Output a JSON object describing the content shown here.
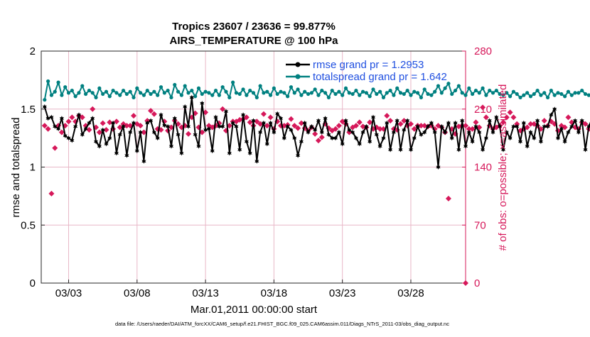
{
  "chart_data": {
    "type": "line",
    "title": "Tropics 23607 / 23636 = 99.877%",
    "subtitle": "AIRS_TEMPERATURE @ 100 hPa",
    "xlabel": "Mar.01,2011 00:00:00 start",
    "ylabel_left": "rmse and totalspread",
    "ylabel_right": "# of obs: o=possible; ×=assimilated",
    "footer": "data file: /Users/raeder/DAI/ATM_forcXX/CAM6_setup/f.e21.FHIST_BGC.f09_025.CAM6assim.011/Diags_NTrS_2011-03/obs_diag_output.nc",
    "x_ticks": [
      "03/03",
      "03/08",
      "03/13",
      "03/18",
      "03/23",
      "03/28"
    ],
    "x_tick_values": [
      3,
      8,
      13,
      18,
      23,
      28
    ],
    "xlim": [
      1.0,
      32.0
    ],
    "ylim_left": [
      0,
      2
    ],
    "y_ticks_left": [
      "0",
      "0.5",
      "1",
      "1.5",
      "2"
    ],
    "ylim_right": [
      0,
      280
    ],
    "y_ticks_right": [
      "0",
      "70",
      "140",
      "210",
      "280"
    ],
    "grid": true,
    "legend_position": "top-right",
    "colors": {
      "rmse": "#000000",
      "totalspread": "#008080",
      "obs": "#d6185a",
      "legend_text": "#1f4fe0"
    },
    "series": [
      {
        "name": "rmse grand pr = 1.2953",
        "color": "#000000",
        "marker": "star",
        "x_start": 1.25,
        "x_step": 0.25,
        "values": [
          1.52,
          1.42,
          1.43,
          1.35,
          1.33,
          1.42,
          1.27,
          1.25,
          1.23,
          1.35,
          1.45,
          1.28,
          1.33,
          1.38,
          1.42,
          1.22,
          1.18,
          1.32,
          1.2,
          1.25,
          1.38,
          1.12,
          1.28,
          1.35,
          1.1,
          1.3,
          1.38,
          1.14,
          1.3,
          1.05,
          1.38,
          1.4,
          1.3,
          1.25,
          1.45,
          1.36,
          1.35,
          1.18,
          1.42,
          1.28,
          1.12,
          1.52,
          1.35,
          1.6,
          1.28,
          1.18,
          1.55,
          1.32,
          1.33,
          1.14,
          1.43,
          1.35,
          1.35,
          1.48,
          1.12,
          1.38,
          1.35,
          1.15,
          1.45,
          1.22,
          1.12,
          1.4,
          1.05,
          1.3,
          1.38,
          1.2,
          1.38,
          1.3,
          1.46,
          1.42,
          1.25,
          1.35,
          1.32,
          1.25,
          1.1,
          1.22,
          1.38,
          1.3,
          1.35,
          1.32,
          1.4,
          1.3,
          1.42,
          1.28,
          1.25,
          1.25,
          1.3,
          1.2,
          1.4,
          1.32,
          1.3,
          1.25,
          1.2,
          1.3,
          1.35,
          1.22,
          1.43,
          1.28,
          1.18,
          1.25,
          1.38,
          1.15,
          1.3,
          1.4,
          1.15,
          1.32,
          1.4,
          1.15,
          1.25,
          1.35,
          1.28,
          1.3,
          1.35,
          1.38,
          1.3,
          1.0,
          1.35,
          1.3,
          1.38,
          1.25,
          1.38,
          1.15,
          1.4,
          1.18,
          1.3,
          1.22,
          1.35,
          1.3,
          1.15,
          1.25,
          1.4,
          1.3,
          1.43,
          1.35,
          1.15,
          1.3,
          1.25,
          1.35,
          1.35,
          1.22,
          1.38,
          1.18,
          1.3,
          1.25,
          1.4,
          1.22,
          1.35,
          1.35,
          1.45,
          1.5,
          1.25,
          1.33,
          1.22,
          1.3,
          1.35,
          1.4,
          1.3,
          1.4,
          1.15,
          1.35,
          1.42,
          1.2,
          1.45,
          1.48,
          1.35,
          1.4,
          1.45,
          1.47,
          1.2
        ]
      },
      {
        "name": "totalspread grand pr = 1.642",
        "color": "#008080",
        "marker": "circle",
        "x_start": 1.25,
        "x_step": 0.25,
        "values": [
          1.58,
          1.74,
          1.62,
          1.65,
          1.73,
          1.62,
          1.69,
          1.64,
          1.66,
          1.61,
          1.64,
          1.7,
          1.63,
          1.66,
          1.64,
          1.6,
          1.68,
          1.63,
          1.65,
          1.61,
          1.66,
          1.64,
          1.62,
          1.66,
          1.63,
          1.65,
          1.6,
          1.68,
          1.64,
          1.62,
          1.66,
          1.63,
          1.65,
          1.62,
          1.69,
          1.64,
          1.66,
          1.6,
          1.71,
          1.65,
          1.62,
          1.7,
          1.64,
          1.66,
          1.61,
          1.68,
          1.63,
          1.65,
          1.64,
          1.62,
          1.66,
          1.62,
          1.69,
          1.65,
          1.6,
          1.73,
          1.64,
          1.63,
          1.67,
          1.62,
          1.66,
          1.64,
          1.6,
          1.7,
          1.64,
          1.65,
          1.62,
          1.68,
          1.63,
          1.65,
          1.64,
          1.61,
          1.69,
          1.64,
          1.67,
          1.62,
          1.65,
          1.63,
          1.64,
          1.67,
          1.62,
          1.66,
          1.64,
          1.6,
          1.66,
          1.63,
          1.65,
          1.62,
          1.68,
          1.64,
          1.63,
          1.66,
          1.62,
          1.65,
          1.64,
          1.61,
          1.67,
          1.63,
          1.65,
          1.6,
          1.64,
          1.66,
          1.62,
          1.68,
          1.64,
          1.63,
          1.66,
          1.62,
          1.65,
          1.64,
          1.6,
          1.67,
          1.63,
          1.62,
          1.65,
          1.7,
          1.64,
          1.68,
          1.72,
          1.63,
          1.66,
          1.7,
          1.64,
          1.62,
          1.68,
          1.63,
          1.66,
          1.64,
          1.68,
          1.62,
          1.66,
          1.64,
          1.66,
          1.63,
          1.62,
          1.64,
          1.61,
          1.65,
          1.63,
          1.6,
          1.62,
          1.64,
          1.61,
          1.63,
          1.66,
          1.62,
          1.64,
          1.6,
          1.66,
          1.62,
          1.64,
          1.63,
          1.61,
          1.65,
          1.62,
          1.64,
          1.64,
          1.66,
          1.63,
          1.62,
          1.6,
          1.63,
          1.59,
          1.65,
          1.62,
          1.63,
          1.66,
          1.61,
          1.64,
          1.6,
          1.65,
          1.62
        ]
      },
      {
        "name": "# of obs possible",
        "color": "#d6185a",
        "marker": "diamond",
        "axis": "right",
        "x_start": 1.25,
        "x_step": 0.25,
        "values": [
          190,
          186,
          108,
          163,
          190,
          182,
          190,
          195,
          200,
          195,
          202,
          200,
          190,
          185,
          210,
          188,
          182,
          193,
          185,
          194,
          186,
          195,
          188,
          192,
          190,
          190,
          202,
          192,
          190,
          182,
          196,
          208,
          204,
          186,
          185,
          195,
          184,
          188,
          196,
          192,
          188,
          190,
          180,
          200,
          205,
          188,
          182,
          206,
          190,
          188,
          190,
          193,
          210,
          184,
          190,
          195,
          195,
          197,
          198,
          200,
          194,
          190,
          195,
          192,
          204,
          190,
          200,
          186,
          195,
          190,
          190,
          191,
          198,
          190,
          187,
          193,
          187,
          184,
          188,
          180,
          172,
          176,
          192,
          187,
          184,
          186,
          190,
          195,
          192,
          182,
          188,
          190,
          194,
          189,
          188,
          194,
          186,
          188,
          186,
          186,
          202,
          196,
          186,
          185,
          192,
          196,
          190,
          192,
          186,
          190,
          190,
          190,
          189,
          190,
          186,
          190,
          188,
          182,
          102,
          186,
          180,
          189,
          190,
          190,
          186,
          186,
          194,
          188,
          212,
          200,
          190,
          186,
          188,
          190,
          194,
          200,
          206,
          200,
          192,
          184,
          186,
          188,
          192,
          192,
          190,
          186,
          196,
          190,
          195,
          192,
          184,
          190,
          188,
          200,
          194,
          188,
          186,
          194,
          192,
          186,
          184,
          206,
          190,
          184,
          196,
          188,
          200,
          186,
          190,
          184,
          196,
          190,
          210,
          200
        ]
      }
    ]
  }
}
